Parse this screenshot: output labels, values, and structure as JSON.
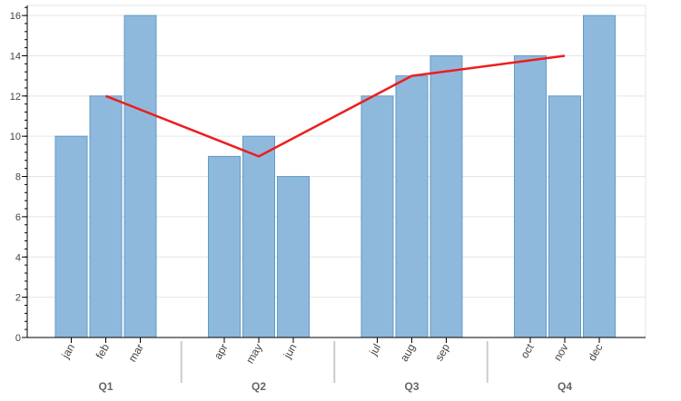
{
  "chart_data": {
    "type": "bar",
    "title": "",
    "xlabel": "",
    "ylabel": "",
    "ylim": [
      0,
      16.5
    ],
    "yticks": [
      "0",
      "2",
      "4",
      "6",
      "8",
      "10",
      "12",
      "14",
      "16"
    ],
    "grid": true,
    "groups": [
      {
        "label": "Q1",
        "categories": [
          "jan",
          "feb",
          "mar"
        ],
        "values": [
          10,
          12,
          16
        ]
      },
      {
        "label": "Q2",
        "categories": [
          "apr",
          "may",
          "jun"
        ],
        "values": [
          9,
          10,
          8
        ]
      },
      {
        "label": "Q3",
        "categories": [
          "jul",
          "aug",
          "sep"
        ],
        "values": [
          12,
          13,
          14
        ]
      },
      {
        "label": "Q4",
        "categories": [
          "oct",
          "nov",
          "dec"
        ],
        "values": [
          14,
          12,
          16
        ]
      }
    ],
    "line_series": {
      "points": [
        {
          "category": "feb",
          "value": 12
        },
        {
          "category": "may",
          "value": 9
        },
        {
          "category": "aug",
          "value": 13
        },
        {
          "category": "nov",
          "value": 14
        }
      ]
    },
    "colors": {
      "bar_fill": "#8fb9dc",
      "bar_stroke": "#5f9bc8",
      "line": "#ee1c1c",
      "grid": "#e5e5e5",
      "axis": "#000000",
      "group_separator": "#cccccc"
    }
  }
}
